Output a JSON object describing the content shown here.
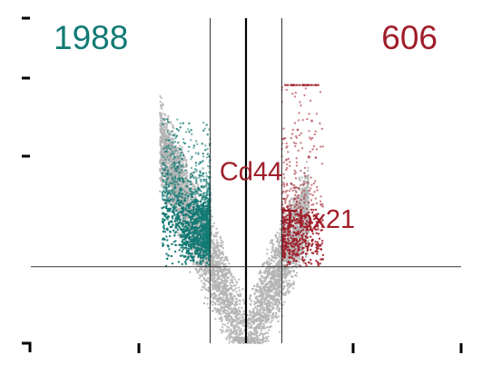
{
  "chart_data": {
    "type": "scatter",
    "subtype": "volcano",
    "title": "",
    "xlabel": "",
    "ylabel": "",
    "counts": {
      "down": "1988",
      "up": "606"
    },
    "annotated_genes": [
      {
        "name": "Cd44",
        "x": 0.06,
        "y": 5.0
      },
      {
        "name": "Tbx21",
        "x": 0.2,
        "y": 2.5
      }
    ],
    "xlim": [
      -1.2,
      1.2
    ],
    "ylim": [
      -4,
      13
    ],
    "fold_change_threshold": [
      -0.2,
      0.2
    ],
    "significance_threshold_y": 0,
    "zero_line_x": 0,
    "grid": false,
    "legend": "none",
    "colors": {
      "down": "#127a74",
      "up": "#a01e2a",
      "not_significant": "#b4b4b4",
      "lines": "#333333",
      "zero_line": "#000000"
    },
    "point_clouds": [
      {
        "group": "not_significant",
        "side": "left",
        "x_range": [
          -0.48,
          0
        ],
        "y_range": [
          -4,
          7
        ],
        "approx_points": 3500
      },
      {
        "group": "not_significant",
        "side": "right",
        "x_range": [
          0,
          0.35
        ],
        "y_range": [
          -4,
          6
        ],
        "approx_points": 2500
      },
      {
        "group": "down",
        "x_range": [
          -0.47,
          -0.2
        ],
        "y_range": [
          0,
          7.7
        ],
        "approx_points": 1988
      },
      {
        "group": "up",
        "x_range": [
          0.2,
          0.43
        ],
        "y_range": [
          0,
          9.5
        ],
        "approx_points": 606
      }
    ]
  }
}
